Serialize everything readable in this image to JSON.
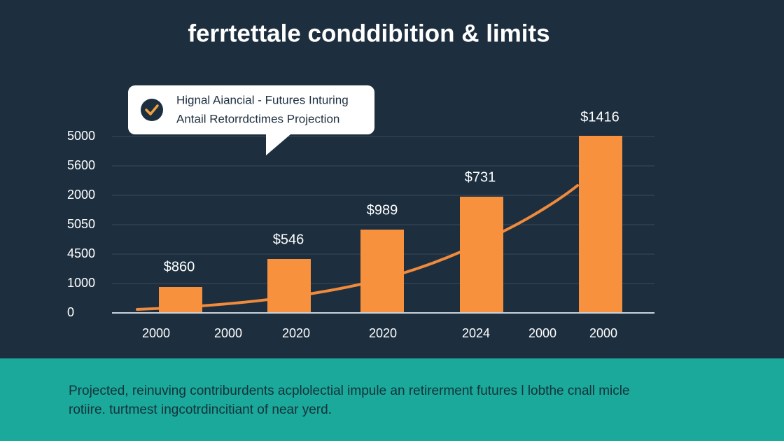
{
  "title": "ferrtettale conddibition & limits",
  "callout": {
    "lines": [
      "Hignal Aiancial - Futures Inturing",
      "Antail Retorrdctimes Projection"
    ]
  },
  "y_axis_labels": [
    "5000",
    "5600",
    "2000",
    "5050",
    "4500",
    "1000",
    "0"
  ],
  "x_axis_labels": [
    "2000",
    "2000",
    "2020",
    "2020",
    "2024",
    "2000",
    "2000"
  ],
  "bar_labels": [
    "$860",
    "$546",
    "$989",
    "$731",
    "$1416"
  ],
  "footer": {
    "lines": [
      "Projected, reinuving contriburdents acplolectial impule an retirerment futures l lobthe cnall micle",
      "rotiire. turtmest ingcotrdincitiant of near yerd."
    ]
  }
}
